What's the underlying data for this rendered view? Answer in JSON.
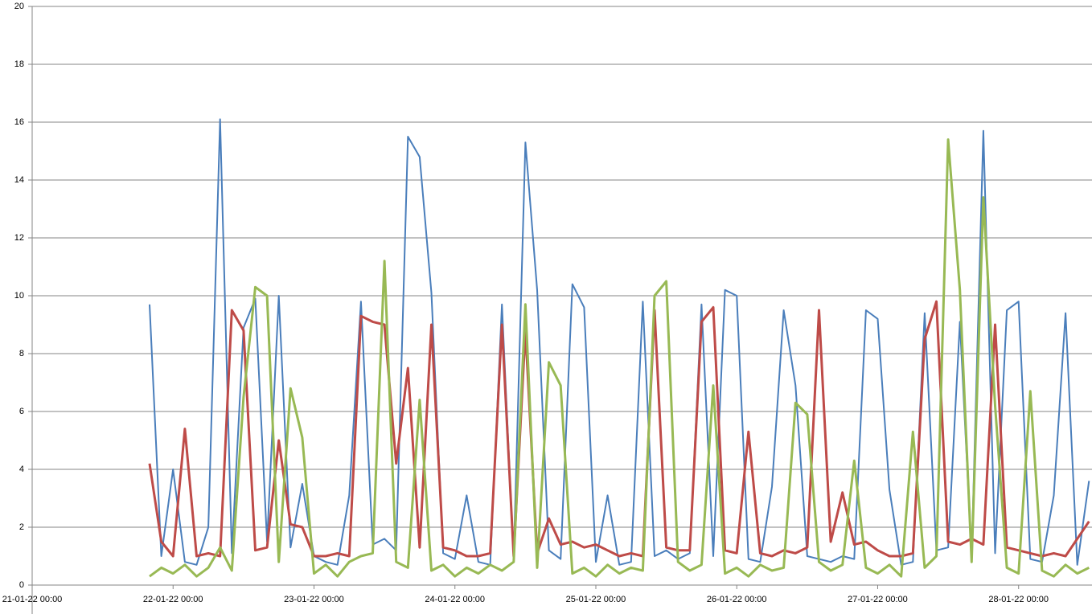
{
  "chart_data": {
    "type": "line",
    "x": [
      "21-01-22 20:00",
      "21-01-22 22:00",
      "22-01-22 00:00",
      "22-01-22 02:00",
      "22-01-22 04:00",
      "22-01-22 06:00",
      "22-01-22 08:00",
      "22-01-22 10:00",
      "22-01-22 12:00",
      "22-01-22 14:00",
      "22-01-22 16:00",
      "22-01-22 18:00",
      "22-01-22 20:00",
      "22-01-22 22:00",
      "23-01-22 00:00",
      "23-01-22 02:00",
      "23-01-22 04:00",
      "23-01-22 06:00",
      "23-01-22 08:00",
      "23-01-22 10:00",
      "23-01-22 12:00",
      "23-01-22 14:00",
      "23-01-22 16:00",
      "23-01-22 18:00",
      "23-01-22 20:00",
      "23-01-22 22:00",
      "24-01-22 00:00",
      "24-01-22 02:00",
      "24-01-22 04:00",
      "24-01-22 06:00",
      "24-01-22 08:00",
      "24-01-22 10:00",
      "24-01-22 12:00",
      "24-01-22 14:00",
      "24-01-22 16:00",
      "24-01-22 18:00",
      "24-01-22 20:00",
      "24-01-22 22:00",
      "25-01-22 00:00",
      "25-01-22 02:00",
      "25-01-22 04:00",
      "25-01-22 06:00",
      "25-01-22 08:00",
      "25-01-22 10:00",
      "25-01-22 12:00",
      "25-01-22 14:00",
      "25-01-22 16:00",
      "25-01-22 18:00",
      "25-01-22 20:00",
      "25-01-22 22:00",
      "26-01-22 00:00",
      "26-01-22 02:00",
      "26-01-22 04:00",
      "26-01-22 06:00",
      "26-01-22 08:00",
      "26-01-22 10:00",
      "26-01-22 12:00",
      "26-01-22 14:00",
      "26-01-22 16:00",
      "26-01-22 18:00",
      "26-01-22 20:00",
      "26-01-22 22:00",
      "27-01-22 00:00",
      "27-01-22 02:00",
      "27-01-22 04:00",
      "27-01-22 06:00",
      "27-01-22 08:00",
      "27-01-22 10:00",
      "27-01-22 12:00",
      "27-01-22 14:00",
      "27-01-22 16:00",
      "27-01-22 18:00",
      "27-01-22 20:00",
      "27-01-22 22:00",
      "28-01-22 00:00",
      "28-01-22 02:00",
      "28-01-22 04:00",
      "28-01-22 06:00",
      "28-01-22 08:00",
      "28-01-22 10:00",
      "28-01-22 12:00"
    ],
    "series": [
      {
        "color": "#4a7ebb",
        "values": [
          9.7,
          1.0,
          4.0,
          0.8,
          0.7,
          2.0,
          16.1,
          1.1,
          8.9,
          9.9,
          1.5,
          10,
          1.3,
          3.5,
          1.0,
          0.8,
          0.7,
          3.1,
          9.8,
          1.4,
          1.6,
          1.2,
          15.5,
          14.8,
          10.1,
          1.1,
          0.9,
          3.1,
          0.8,
          0.7,
          9.7,
          0.9,
          15.3,
          10.2,
          1.2,
          0.9,
          10.4,
          9.6,
          0.8,
          3.1,
          0.7,
          0.8,
          9.8,
          1.0,
          1.2,
          0.9,
          1.1,
          9.7,
          1.0,
          10.2,
          10,
          0.9,
          0.8,
          3.4,
          9.5,
          6.9,
          1.0,
          0.9,
          0.8,
          1.0,
          0.9,
          9.5,
          9.2,
          3.3,
          0.7,
          0.8,
          9.4,
          1.2,
          1.3,
          9.1,
          1.0,
          15.7,
          1.1,
          9.5,
          9.8,
          0.9,
          0.8,
          3.1,
          9.4,
          0.7,
          3.6
        ]
      },
      {
        "color": "#be4b48",
        "values": [
          4.2,
          1.5,
          1.0,
          5.4,
          1.0,
          1.1,
          1.0,
          9.5,
          8.8,
          1.2,
          1.3,
          5.0,
          2.1,
          2.0,
          1.0,
          1.0,
          1.1,
          1.0,
          9.3,
          9.1,
          9.0,
          4.2,
          7.5,
          1.3,
          9.0,
          1.3,
          1.2,
          1.0,
          1.0,
          1.1,
          9.0,
          1.0,
          8.8,
          1.1,
          2.3,
          1.4,
          1.5,
          1.3,
          1.4,
          1.2,
          1.0,
          1.1,
          1.0,
          9.5,
          1.3,
          1.2,
          1.2,
          9.1,
          9.6,
          1.2,
          1.1,
          5.3,
          1.1,
          1.0,
          1.2,
          1.1,
          1.3,
          9.5,
          1.5,
          3.2,
          1.4,
          1.5,
          1.2,
          1.0,
          1.0,
          1.1,
          8.5,
          9.8,
          1.5,
          1.4,
          1.6,
          1.4,
          9.0,
          1.3,
          1.2,
          1.1,
          1.0,
          1.1,
          1.0,
          1.6,
          2.2
        ]
      },
      {
        "color": "#98b954",
        "values": [
          0.3,
          0.6,
          0.4,
          0.7,
          0.3,
          0.6,
          1.3,
          0.5,
          6.5,
          10.3,
          10.0,
          0.8,
          6.8,
          5.1,
          0.4,
          0.7,
          0.3,
          0.8,
          1.0,
          1.1,
          11.2,
          0.8,
          0.6,
          6.4,
          0.5,
          0.7,
          0.3,
          0.6,
          0.4,
          0.7,
          0.5,
          0.8,
          9.7,
          0.6,
          7.7,
          6.9,
          0.4,
          0.6,
          0.3,
          0.7,
          0.4,
          0.6,
          0.5,
          10.0,
          10.5,
          0.8,
          0.5,
          0.7,
          6.9,
          0.4,
          0.6,
          0.3,
          0.7,
          0.5,
          0.6,
          6.3,
          5.9,
          0.8,
          0.5,
          0.7,
          4.3,
          0.6,
          0.4,
          0.7,
          0.3,
          5.3,
          0.6,
          1.0,
          15.4,
          10.2,
          0.8,
          13.4,
          6.2,
          0.6,
          0.4,
          6.7,
          0.5,
          0.3,
          0.7,
          0.4,
          0.6
        ]
      }
    ],
    "xlim": [
      "21-01-22 00:00",
      "28-01-22 12:30"
    ],
    "xticks": [
      "21-01-22 00:00",
      "22-01-22 00:00",
      "23-01-22 00:00",
      "24-01-22 00:00",
      "25-01-22 00:00",
      "26-01-22 00:00",
      "27-01-22 00:00",
      "28-01-22 00:00"
    ],
    "ylim": [
      0,
      20
    ],
    "yticks": [
      0,
      2,
      4,
      6,
      8,
      10,
      12,
      14,
      16,
      18,
      20
    ],
    "grid": true
  }
}
